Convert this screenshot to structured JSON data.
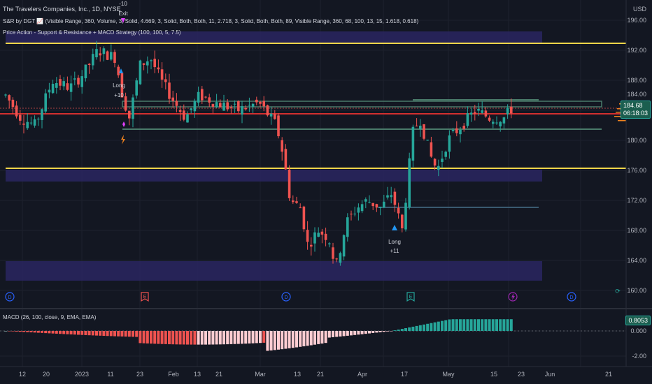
{
  "chart_header": {
    "symbol_line": "The Travelers Companies, Inc., 1D, NYSE",
    "indicator1": "S&R by DGT 📈 (Visible Range, 360, Volume, 3, Solid, 4.669, 3, Solid, Both, Both, 11, 2.718, 3, Solid, Both, Both, 89, Visible Range, 360, 68, 100, 13, 15, 1.618, 0.618)",
    "indicator2": "Price Action - Support & Resistance + MACD Strategy (100, 100, 5, 7.5)",
    "currency": "USD",
    "macd_legend": "MACD (26, 100, close, 9, EMA, EMA)"
  },
  "price_axis": {
    "labels": [
      "196.00",
      "192.00",
      "188.00",
      "184.00",
      "180.00",
      "176.00",
      "172.00",
      "168.00",
      "164.00",
      "160.00"
    ]
  },
  "last_price": {
    "value": "184.68",
    "countdown": "06:18:03"
  },
  "macd_axis": {
    "value_tag": "0.8053",
    "labels": [
      "0.000",
      "-2.00"
    ]
  },
  "time_axis": {
    "labels": [
      "12",
      "20",
      "2023",
      "11",
      "23",
      "Feb",
      "13",
      "21",
      "Mar",
      "13",
      "21",
      "Apr",
      "17",
      "May",
      "15",
      "23",
      "Jun",
      "21"
    ]
  },
  "trade_marks": [
    {
      "label": "-10",
      "label2": "Exit"
    },
    {
      "label": "Long",
      "label2": "+10"
    },
    {
      "label": "Long",
      "label2": "+11"
    }
  ],
  "event_icons": [
    "D",
    "E",
    "D",
    "E",
    "D",
    "D"
  ],
  "colors": {
    "background": "#131722",
    "bull": "#26a69a",
    "bear": "#ef5350",
    "level_yellow": "#f2d649",
    "level_red": "#d32f2f",
    "zone_purple": "#2a2660",
    "macd_pos": "#26a69a",
    "macd_neg": "#ef5350"
  }
}
